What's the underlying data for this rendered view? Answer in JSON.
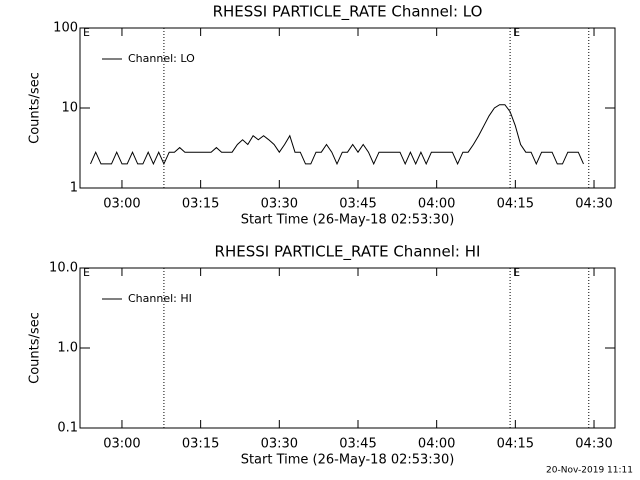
{
  "chart_data": [
    {
      "type": "line",
      "title": "RHESSI PARTICLE_RATE Channel: LO",
      "xlabel": "Start Time (26-May-18 02:53:30)",
      "ylabel": "Counts/sec",
      "log_y": true,
      "legend": "upper left",
      "xlim": [
        "02:52",
        "04:34"
      ],
      "xticks": [
        "03:00",
        "03:15",
        "03:30",
        "03:45",
        "04:00",
        "04:15",
        "04:30"
      ],
      "ylim": [
        1,
        100
      ],
      "yticks": [
        1,
        10,
        100
      ],
      "markers": [
        {
          "x": "02:52",
          "label": "E"
        },
        {
          "x": "03:08"
        },
        {
          "x": "04:14",
          "label": "E"
        },
        {
          "x": "04:29"
        }
      ],
      "x": [
        "02:54",
        "02:55",
        "02:56",
        "02:57",
        "02:58",
        "02:59",
        "03:00",
        "03:01",
        "03:02",
        "03:03",
        "03:04",
        "03:05",
        "03:06",
        "03:07",
        "03:08",
        "03:09",
        "03:10",
        "03:11",
        "03:12",
        "03:13",
        "03:14",
        "03:15",
        "03:16",
        "03:17",
        "03:18",
        "03:19",
        "03:20",
        "03:21",
        "03:22",
        "03:23",
        "03:24",
        "03:25",
        "03:26",
        "03:27",
        "03:28",
        "03:29",
        "03:30",
        "03:31",
        "03:32",
        "03:33",
        "03:34",
        "03:35",
        "03:36",
        "03:37",
        "03:38",
        "03:39",
        "03:40",
        "03:41",
        "03:42",
        "03:43",
        "03:44",
        "03:45",
        "03:46",
        "03:47",
        "03:48",
        "03:49",
        "03:50",
        "03:51",
        "03:52",
        "03:53",
        "03:54",
        "03:55",
        "03:56",
        "03:57",
        "03:58",
        "03:59",
        "04:00",
        "04:01",
        "04:02",
        "04:03",
        "04:04",
        "04:05",
        "04:06",
        "04:07",
        "04:08",
        "04:09",
        "04:10",
        "04:11",
        "04:12",
        "04:13",
        "04:14",
        "04:15",
        "04:16",
        "04:17",
        "04:18",
        "04:19",
        "04:20",
        "04:21",
        "04:22",
        "04:23",
        "04:24",
        "04:25",
        "04:26",
        "04:27",
        "04:28"
      ],
      "series": [
        {
          "name": "Channel: LO",
          "color": "#000000",
          "values": [
            2,
            2.8,
            2,
            2,
            2,
            2.8,
            2,
            2,
            2.8,
            2,
            2,
            2.8,
            2,
            2.8,
            2,
            2.8,
            2.8,
            3.2,
            2.8,
            2.8,
            2.8,
            2.8,
            2.8,
            2.8,
            3.2,
            2.8,
            2.8,
            2.8,
            3.5,
            4,
            3.5,
            4.5,
            4,
            4.5,
            4,
            3.5,
            2.8,
            3.5,
            4.5,
            2.8,
            2.8,
            2,
            2,
            2.8,
            2.8,
            3.5,
            2.8,
            2,
            2.8,
            2.8,
            3.5,
            2.8,
            3.5,
            2.8,
            2,
            2.8,
            2.8,
            2.8,
            2.8,
            2.8,
            2,
            2.8,
            2,
            2.8,
            2,
            2.8,
            2.8,
            2.8,
            2.8,
            2.8,
            2,
            2.8,
            2.8,
            3.5,
            4.5,
            6,
            8,
            10,
            11,
            11,
            9,
            6,
            3.5,
            2.8,
            2.8,
            2,
            2.8,
            2.8,
            2.8,
            2,
            2,
            2.8,
            2.8,
            2.8,
            2
          ]
        }
      ]
    },
    {
      "type": "line",
      "title": "RHESSI PARTICLE_RATE Channel: HI",
      "xlabel": "Start Time (26-May-18 02:53:30)",
      "ylabel": "Counts/sec",
      "log_y": true,
      "legend": "upper left",
      "xlim": [
        "02:52",
        "04:34"
      ],
      "xticks": [
        "03:00",
        "03:15",
        "03:30",
        "03:45",
        "04:00",
        "04:15",
        "04:30"
      ],
      "ylim": [
        0.1,
        10
      ],
      "yticks": [
        0.1,
        {
          "value": 1,
          "label": "1.0"
        },
        {
          "value": 10,
          "label": "10.0"
        }
      ],
      "markers": [
        {
          "x": "02:52",
          "label": "E"
        },
        {
          "x": "03:08"
        },
        {
          "x": "04:14",
          "label": "E"
        },
        {
          "x": "04:29"
        }
      ],
      "x": [],
      "series": [
        {
          "name": "Channel: HI",
          "color": "#000000",
          "values": []
        }
      ]
    }
  ],
  "timestamp": "20-Nov-2019 11:11"
}
